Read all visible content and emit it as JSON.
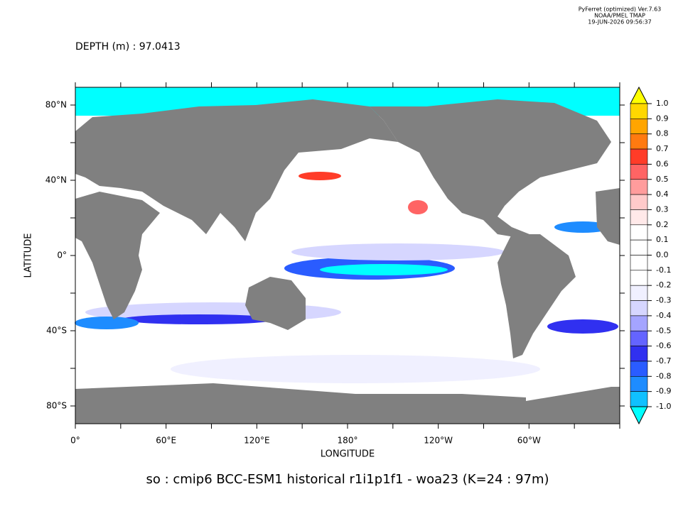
{
  "header": [
    "PyFerret (optimized) Ver.7.63",
    "NOAA/PMEL TMAP",
    "19-JUN-2026 09:56:37"
  ],
  "depth_label": "DEPTH (m) : 97.0413",
  "x_axis": {
    "label": "LONGITUDE",
    "ticks": [
      "0°",
      "60°E",
      "120°E",
      "180°",
      "120°W",
      "60°W"
    ]
  },
  "y_axis": {
    "label": "LATITUDE",
    "ticks": [
      "80°N",
      "40°N",
      "0°",
      "40°S",
      "80°S"
    ]
  },
  "colorbar": {
    "labels": [
      "1.0",
      "0.9",
      "0.8",
      "0.7",
      "0.6",
      "0.5",
      "0.4",
      "0.3",
      "0.2",
      "0.1",
      "0.0",
      "-0.1",
      "-0.2",
      "-0.3",
      "-0.4",
      "-0.5",
      "-0.6",
      "-0.7",
      "-0.8",
      "-0.9",
      "-1.0"
    ],
    "colors": [
      "#ffd700",
      "#ffa500",
      "#ff7a10",
      "#ff3c28",
      "#ff6464",
      "#ff9c9c",
      "#ffcaca",
      "#ffe9e9",
      "#ffffff",
      "#ffffff",
      "#ffffff",
      "#ffffff",
      "#f0f0ff",
      "#d6d6ff",
      "#a4a4ff",
      "#6464ff",
      "#3030f0",
      "#2a5cff",
      "#1e8cff",
      "#10c0ff"
    ],
    "over_color": "#ffff00",
    "under_color": "#00ffff"
  },
  "caption": "so : cmip6 BCC-ESM1 historical r1i1p1f1 - woa23  (K=24 : 97m)"
}
